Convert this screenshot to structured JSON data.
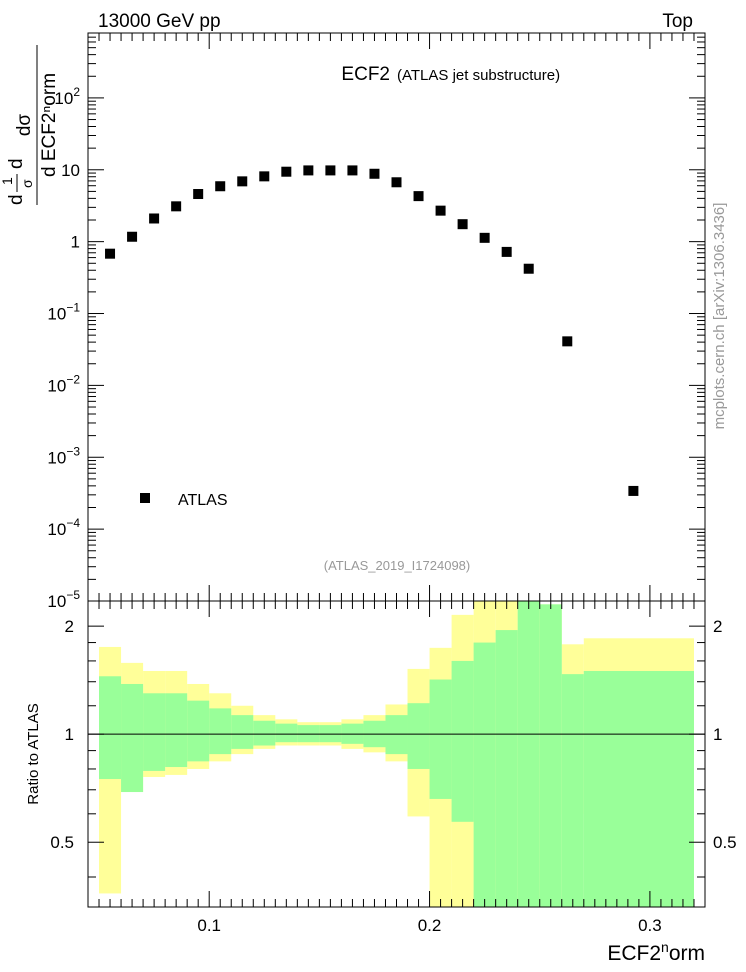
{
  "header": {
    "left": "13000 GeV pp",
    "right": "Top"
  },
  "watermark": "mcplots.cern.ch [arXiv:1306.3436]",
  "colors": {
    "yellow_band": "#ffff99",
    "green_band": "#99ff99",
    "marker": "#000000",
    "label_gray": "#999999"
  },
  "chart_data": [
    {
      "type": "scatter",
      "title": "ECF2",
      "subtitle": "(ATLAS jet substructure)",
      "analysis_id": "(ATLAS_2019_I1724098)",
      "ylabel_frac_top": "dσ",
      "ylabel_frac_bottom": "d ECF2ⁿorm",
      "ylabel_prefix_num": "1",
      "ylabel_prefix_den": "σ",
      "ylabel_prefix_d": "d",
      "y_scale": "log",
      "xlim": [
        0.045,
        0.325
      ],
      "ylim": [
        1e-05,
        800
      ],
      "y_ticks": [
        {
          "v": 1e-05,
          "base": "10",
          "exp": "−5"
        },
        {
          "v": 0.0001,
          "base": "10",
          "exp": "−4"
        },
        {
          "v": 0.001,
          "base": "10",
          "exp": "−3"
        },
        {
          "v": 0.01,
          "base": "10",
          "exp": "−2"
        },
        {
          "v": 0.1,
          "base": "10",
          "exp": "−1"
        },
        {
          "v": 1,
          "base": "1",
          "exp": ""
        },
        {
          "v": 10,
          "base": "10",
          "exp": ""
        },
        {
          "v": 100,
          "base": "10",
          "exp": "2"
        }
      ],
      "legend": {
        "label": "ATLAS",
        "position": "bottom-left"
      },
      "series": [
        {
          "name": "ATLAS",
          "x": [
            0.055,
            0.065,
            0.075,
            0.085,
            0.095,
            0.105,
            0.115,
            0.125,
            0.135,
            0.145,
            0.155,
            0.165,
            0.175,
            0.185,
            0.195,
            0.205,
            0.215,
            0.225,
            0.235,
            0.245,
            0.2625,
            0.2925
          ],
          "y": [
            0.68,
            1.17,
            2.1,
            3.1,
            4.6,
            5.9,
            6.9,
            8.1,
            9.4,
            9.8,
            9.8,
            9.8,
            8.8,
            6.7,
            4.3,
            2.7,
            1.75,
            1.13,
            0.72,
            0.42,
            0.041,
            0.00034
          ]
        }
      ]
    },
    {
      "type": "area",
      "ylabel": "Ratio to ATLAS",
      "xlabel_base": "ECF2",
      "xlabel_sup": "n",
      "xlabel_rest": "orm",
      "xlim": [
        0.045,
        0.325
      ],
      "ylim": [
        0.33,
        2.35
      ],
      "y_scale": "log",
      "x_ticks": [
        {
          "v": 0.1,
          "label": "0.1"
        },
        {
          "v": 0.2,
          "label": "0.2"
        },
        {
          "v": 0.3,
          "label": "0.3"
        }
      ],
      "y_ticks": [
        {
          "v": 0.5,
          "label": "0.5"
        },
        {
          "v": 1,
          "label": "1"
        },
        {
          "v": 2,
          "label": "2"
        }
      ],
      "bins": [
        {
          "x0": 0.05,
          "x1": 0.06,
          "y_hi": 1.75,
          "y_lo": 0.36,
          "g_hi": 1.45,
          "g_lo": 0.75
        },
        {
          "x0": 0.06,
          "x1": 0.07,
          "y_hi": 1.58,
          "y_lo": 0.69,
          "g_hi": 1.38,
          "g_lo": 0.69
        },
        {
          "x0": 0.07,
          "x1": 0.08,
          "y_hi": 1.5,
          "y_lo": 0.76,
          "g_hi": 1.3,
          "g_lo": 0.79
        },
        {
          "x0": 0.08,
          "x1": 0.09,
          "y_hi": 1.5,
          "y_lo": 0.77,
          "g_hi": 1.3,
          "g_lo": 0.81
        },
        {
          "x0": 0.09,
          "x1": 0.1,
          "y_hi": 1.38,
          "y_lo": 0.8,
          "g_hi": 1.24,
          "g_lo": 0.84
        },
        {
          "x0": 0.1,
          "x1": 0.11,
          "y_hi": 1.3,
          "y_lo": 0.84,
          "g_hi": 1.18,
          "g_lo": 0.88
        },
        {
          "x0": 0.11,
          "x1": 0.12,
          "y_hi": 1.2,
          "y_lo": 0.88,
          "g_hi": 1.13,
          "g_lo": 0.91
        },
        {
          "x0": 0.12,
          "x1": 0.13,
          "y_hi": 1.13,
          "y_lo": 0.91,
          "g_hi": 1.09,
          "g_lo": 0.93
        },
        {
          "x0": 0.13,
          "x1": 0.14,
          "y_hi": 1.1,
          "y_lo": 0.93,
          "g_hi": 1.07,
          "g_lo": 0.95
        },
        {
          "x0": 0.14,
          "x1": 0.15,
          "y_hi": 1.08,
          "y_lo": 0.93,
          "g_hi": 1.06,
          "g_lo": 0.95
        },
        {
          "x0": 0.15,
          "x1": 0.16,
          "y_hi": 1.08,
          "y_lo": 0.93,
          "g_hi": 1.06,
          "g_lo": 0.95
        },
        {
          "x0": 0.16,
          "x1": 0.17,
          "y_hi": 1.1,
          "y_lo": 0.91,
          "g_hi": 1.07,
          "g_lo": 0.94
        },
        {
          "x0": 0.17,
          "x1": 0.18,
          "y_hi": 1.13,
          "y_lo": 0.89,
          "g_hi": 1.09,
          "g_lo": 0.92
        },
        {
          "x0": 0.18,
          "x1": 0.19,
          "y_hi": 1.21,
          "y_lo": 0.84,
          "g_hi": 1.13,
          "g_lo": 0.88
        },
        {
          "x0": 0.19,
          "x1": 0.2,
          "y_hi": 1.52,
          "y_lo": 0.59,
          "g_hi": 1.22,
          "g_lo": 0.8
        },
        {
          "x0": 0.2,
          "x1": 0.21,
          "y_hi": 1.74,
          "y_lo": 0.33,
          "g_hi": 1.42,
          "g_lo": 0.66
        },
        {
          "x0": 0.21,
          "x1": 0.22,
          "y_hi": 2.15,
          "y_lo": 0.33,
          "g_hi": 1.6,
          "g_lo": 0.57
        },
        {
          "x0": 0.22,
          "x1": 0.23,
          "y_hi": 2.35,
          "y_lo": 0.33,
          "g_hi": 1.8,
          "g_lo": 0.33
        },
        {
          "x0": 0.23,
          "x1": 0.24,
          "y_hi": 2.35,
          "y_lo": 0.33,
          "g_hi": 1.95,
          "g_lo": 0.33
        },
        {
          "x0": 0.24,
          "x1": 0.25,
          "y_hi": 2.35,
          "y_lo": 0.33,
          "g_hi": 2.35,
          "g_lo": 0.33
        },
        {
          "x0": 0.25,
          "x1": 0.26,
          "y_hi": 2.3,
          "y_lo": 0.33,
          "g_hi": 2.3,
          "g_lo": 0.33
        },
        {
          "x0": 0.26,
          "x1": 0.27,
          "y_hi": 1.78,
          "y_lo": 0.6,
          "g_hi": 1.47,
          "g_lo": 0.33
        },
        {
          "x0": 0.27,
          "x1": 0.32,
          "y_hi": 1.85,
          "y_lo": 0.33,
          "g_hi": 1.5,
          "g_lo": 0.33
        }
      ]
    }
  ]
}
